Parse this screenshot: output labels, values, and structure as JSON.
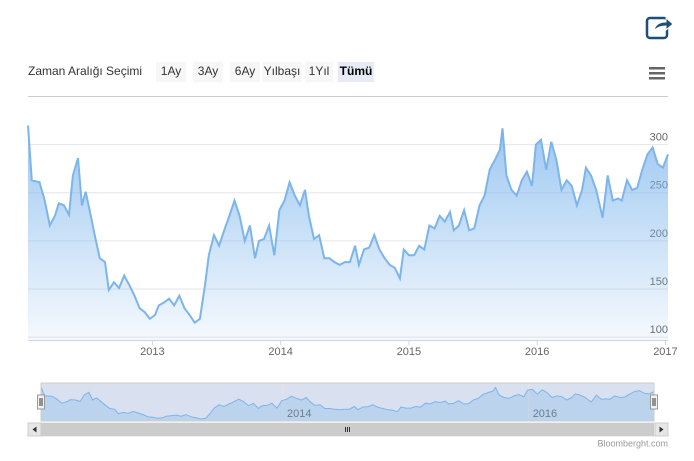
{
  "chart_data": {
    "type": "area",
    "range_selector": {
      "label": "Zaman Aralığı Seçimi",
      "buttons": [
        "1Ay",
        "3Ay",
        "6Ay",
        "Yılbaşı",
        "1Yıl",
        "Tümü"
      ],
      "selected": 5
    },
    "credit": "Bloomberght.com",
    "color": "#7cb5ec",
    "grid": true,
    "xlim": [
      2012.03,
      2017.02
    ],
    "xticks": [
      2013,
      2014,
      2015,
      2016,
      2017
    ],
    "ylim": [
      97,
      336
    ],
    "yticks": [
      100,
      150,
      200,
      250,
      300
    ],
    "navigator": {
      "xticks": [
        2014,
        2016
      ]
    },
    "x": [
      2012.03,
      2012.06,
      2012.12,
      2012.16,
      2012.2,
      2012.24,
      2012.27,
      2012.31,
      2012.35,
      2012.38,
      2012.42,
      2012.45,
      2012.48,
      2012.51,
      2012.55,
      2012.59,
      2012.63,
      2012.66,
      2012.7,
      2012.74,
      2012.78,
      2012.82,
      2012.86,
      2012.9,
      2012.94,
      2012.98,
      2013.02,
      2013.05,
      2013.09,
      2013.13,
      2013.17,
      2013.21,
      2013.25,
      2013.29,
      2013.33,
      2013.37,
      2013.41,
      2013.44,
      2013.48,
      2013.52,
      2013.56,
      2013.6,
      2013.64,
      2013.68,
      2013.72,
      2013.76,
      2013.8,
      2013.83,
      2013.87,
      2013.91,
      2013.95,
      2013.99,
      2014.03,
      2014.07,
      2014.11,
      2014.15,
      2014.19,
      2014.22,
      2014.26,
      2014.3,
      2014.34,
      2014.38,
      2014.42,
      2014.46,
      2014.5,
      2014.54,
      2014.58,
      2014.61,
      2014.65,
      2014.69,
      2014.73,
      2014.77,
      2014.81,
      2014.85,
      2014.89,
      2014.93,
      2014.96,
      2015.0,
      2015.04,
      2015.08,
      2015.12,
      2015.16,
      2015.2,
      2015.24,
      2015.28,
      2015.32,
      2015.35,
      2015.39,
      2015.43,
      2015.47,
      2015.51,
      2015.55,
      2015.59,
      2015.63,
      2015.67,
      2015.71,
      2015.73,
      2015.76,
      2015.8,
      2015.84,
      2015.88,
      2015.92,
      2015.96,
      2015.99,
      2016.03,
      2016.07,
      2016.11,
      2016.15,
      2016.19,
      2016.23,
      2016.27,
      2016.31,
      2016.35,
      2016.38,
      2016.42,
      2016.46,
      2016.51,
      2016.55,
      2016.59,
      2016.63,
      2016.66,
      2016.7,
      2016.74,
      2016.78,
      2016.82,
      2016.86,
      2016.9,
      2016.94,
      2016.98,
      2017.02
    ],
    "values": [
      320,
      263,
      261,
      242,
      216,
      226,
      239,
      237,
      227,
      268,
      286,
      237,
      251,
      232,
      206,
      182,
      178,
      149,
      157,
      151,
      164,
      154,
      143,
      130,
      126,
      119,
      123,
      133,
      136,
      140,
      133,
      143,
      130,
      123,
      115,
      119,
      154,
      185,
      206,
      195,
      211,
      226,
      242,
      226,
      200,
      216,
      182,
      200,
      202,
      216,
      185,
      232,
      242,
      261,
      247,
      237,
      253,
      226,
      202,
      206,
      182,
      182,
      178,
      175,
      178,
      178,
      195,
      175,
      191,
      193,
      206,
      191,
      182,
      175,
      172,
      161,
      191,
      185,
      185,
      195,
      191,
      216,
      213,
      226,
      220,
      230,
      211,
      216,
      232,
      211,
      213,
      237,
      247,
      274,
      284,
      295,
      317,
      268,
      253,
      247,
      263,
      272,
      257,
      300,
      305,
      274,
      303,
      284,
      253,
      263,
      257,
      237,
      253,
      276,
      268,
      253,
      224,
      268,
      242,
      244,
      242,
      263,
      253,
      255,
      274,
      290,
      297,
      280,
      276,
      290
    ]
  }
}
